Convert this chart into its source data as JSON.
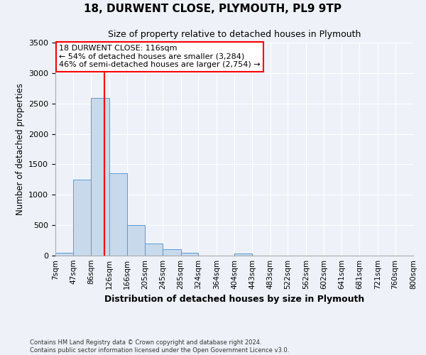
{
  "title": "18, DURWENT CLOSE, PLYMOUTH, PL9 9TP",
  "subtitle": "Size of property relative to detached houses in Plymouth",
  "xlabel": "Distribution of detached houses by size in Plymouth",
  "ylabel": "Number of detached properties",
  "bin_labels": [
    "7sqm",
    "47sqm",
    "86sqm",
    "126sqm",
    "166sqm",
    "205sqm",
    "245sqm",
    "285sqm",
    "324sqm",
    "364sqm",
    "404sqm",
    "443sqm",
    "483sqm",
    "522sqm",
    "562sqm",
    "602sqm",
    "641sqm",
    "681sqm",
    "721sqm",
    "760sqm",
    "800sqm"
  ],
  "bar_values": [
    50,
    1250,
    2590,
    1350,
    500,
    200,
    110,
    45,
    5,
    0,
    30,
    0,
    0,
    0,
    0,
    0,
    0,
    0,
    0,
    0
  ],
  "bar_color": "#c9d9ec",
  "bar_edge_color": "#5b9bd5",
  "vline_x": 116,
  "vline_color": "red",
  "property_label": "18 DURWENT CLOSE: 116sqm",
  "annotation_line1": "← 54% of detached houses are smaller (3,284)",
  "annotation_line2": "46% of semi-detached houses are larger (2,754) →",
  "ylim": [
    0,
    3500
  ],
  "yticks": [
    0,
    500,
    1000,
    1500,
    2000,
    2500,
    3000,
    3500
  ],
  "bin_edges": [
    7,
    47,
    86,
    126,
    166,
    205,
    245,
    285,
    324,
    364,
    404,
    443,
    483,
    522,
    562,
    602,
    641,
    681,
    721,
    760,
    800
  ],
  "footer1": "Contains HM Land Registry data © Crown copyright and database right 2024.",
  "footer2": "Contains public sector information licensed under the Open Government Licence v3.0.",
  "background_color": "#eef2f8",
  "plot_bg_color": "#eef2f8",
  "grid_color": "#ffffff"
}
